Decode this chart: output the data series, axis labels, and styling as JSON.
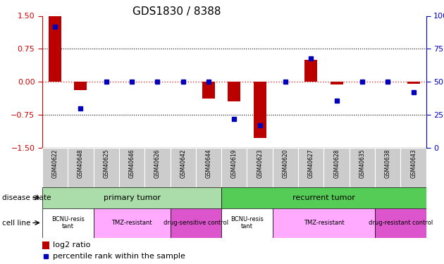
{
  "title": "GDS1830 / 8388",
  "samples": [
    "GSM40622",
    "GSM40648",
    "GSM40625",
    "GSM40646",
    "GSM40626",
    "GSM40642",
    "GSM40644",
    "GSM40619",
    "GSM40623",
    "GSM40620",
    "GSM40627",
    "GSM40628",
    "GSM40635",
    "GSM40638",
    "GSM40643"
  ],
  "log2_ratio": [
    1.5,
    -0.18,
    0.0,
    0.0,
    0.0,
    0.0,
    -0.38,
    -0.45,
    -1.28,
    0.0,
    0.5,
    -0.06,
    0.0,
    0.0,
    -0.05
  ],
  "percentile": [
    92,
    30,
    50,
    50,
    50,
    50,
    50,
    22,
    17,
    50,
    68,
    36,
    50,
    50,
    42
  ],
  "ylim_left": [
    -1.5,
    1.5
  ],
  "ylim_right": [
    0,
    100
  ],
  "yticks_left": [
    -1.5,
    -0.75,
    0,
    0.75,
    1.5
  ],
  "yticks_right": [
    0,
    25,
    50,
    75,
    100
  ],
  "bar_color": "#bb0000",
  "dot_color": "#0000bb",
  "left_axis_color": "#cc0000",
  "right_axis_color": "#0000cc",
  "primary_tumor_color": "#aaddaa",
  "recurrent_tumor_color": "#55cc55",
  "sample_bg_color": "#cccccc",
  "cell_line_groups": [
    {
      "label": "BCNU-resis\ntant",
      "start": 0,
      "end": 1,
      "color": "#ffffff"
    },
    {
      "label": "TMZ-resistant",
      "start": 2,
      "end": 4,
      "color": "#ffaaff"
    },
    {
      "label": "drug-sensitive control",
      "start": 5,
      "end": 6,
      "color": "#dd55cc"
    },
    {
      "label": "BCNU-resis\ntant",
      "start": 7,
      "end": 8,
      "color": "#ffffff"
    },
    {
      "label": "TMZ-resistant",
      "start": 9,
      "end": 12,
      "color": "#ffaaff"
    },
    {
      "label": "drug-resistant control",
      "start": 13,
      "end": 14,
      "color": "#dd55cc"
    }
  ]
}
